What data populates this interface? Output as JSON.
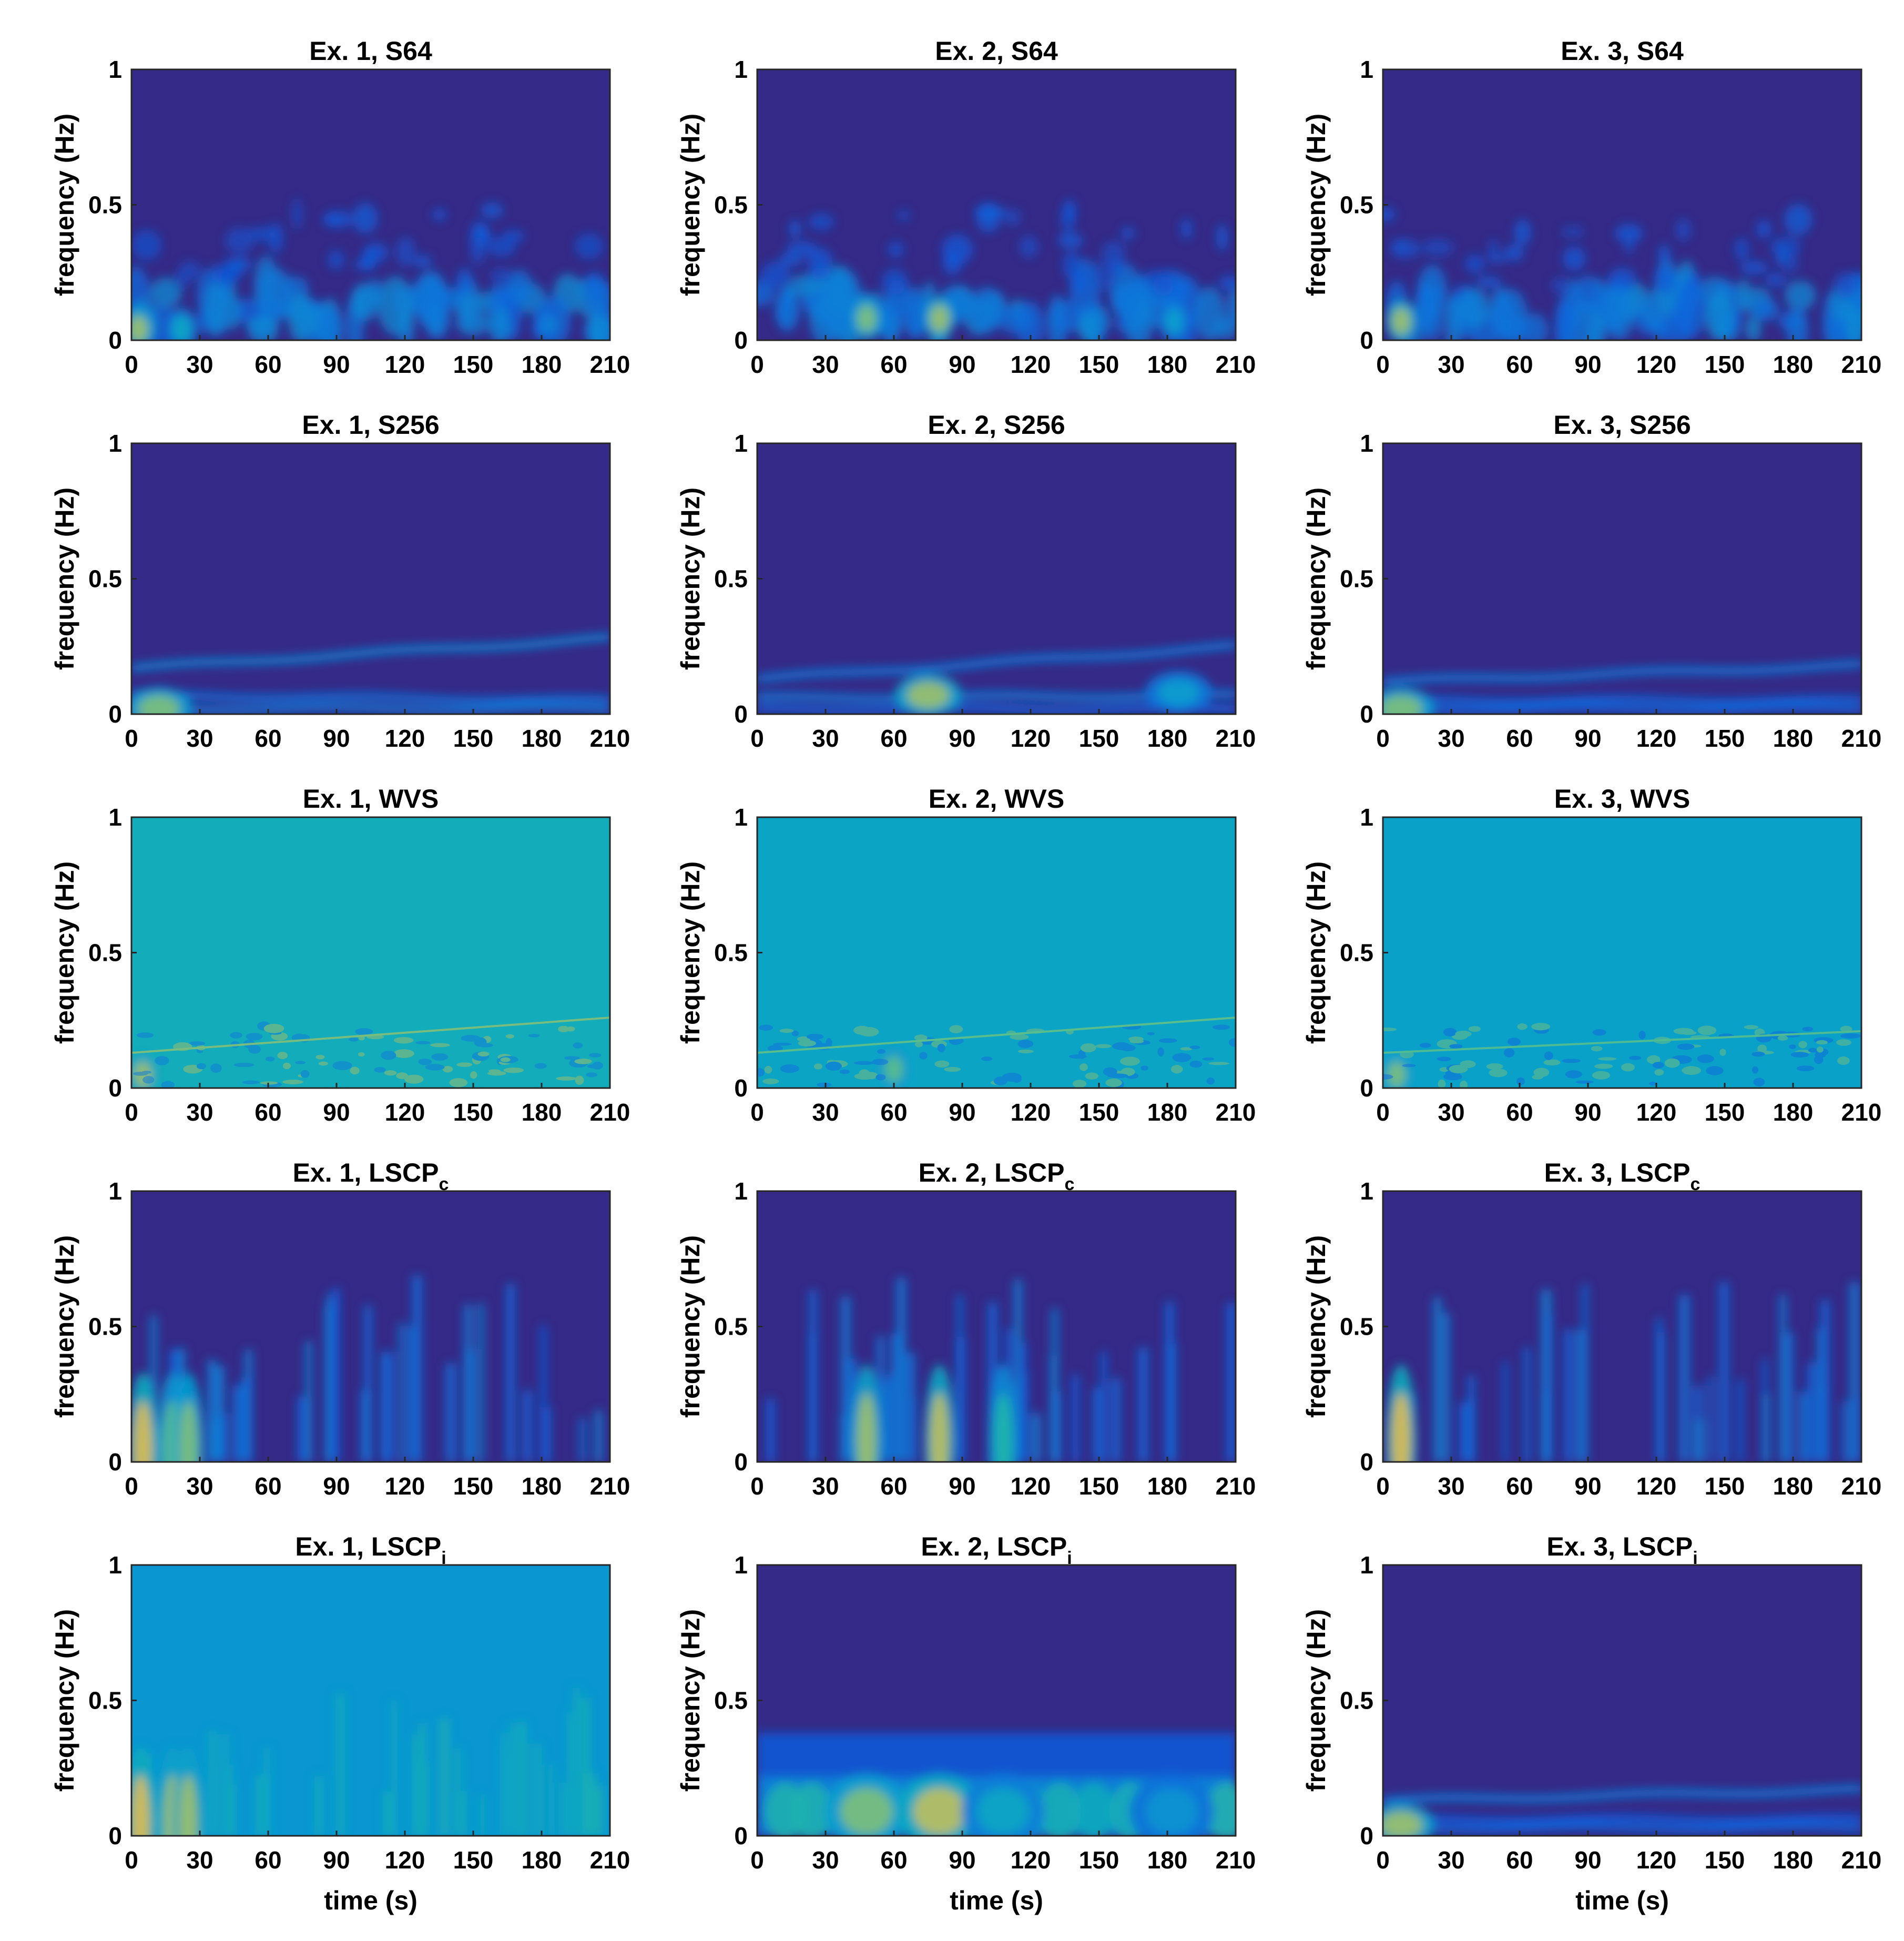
{
  "colors": {
    "colormap": "parula",
    "background_low": "#352a87",
    "axis": "#262626"
  },
  "chart_data": [
    {
      "type": "heatmap",
      "title": "Ex. 1, S64",
      "title_base": "Ex. 1, S64",
      "title_sub": "",
      "xlabel": "",
      "ylabel": "frequency (Hz)",
      "xlim": [
        0,
        210
      ],
      "ylim": [
        0,
        1
      ],
      "xticks": [
        "0",
        "30",
        "60",
        "90",
        "120",
        "150",
        "180",
        "210"
      ],
      "yticks": [
        "0",
        "0.5",
        "1"
      ],
      "style": "spectro",
      "hot_spots": [
        {
          "t": 3,
          "f": 0.04,
          "v": 0.8
        },
        {
          "t": 22,
          "f": 0.04,
          "v": 0.5
        }
      ]
    },
    {
      "type": "heatmap",
      "title": "Ex. 2, S64",
      "title_base": "Ex. 2, S64",
      "title_sub": "",
      "xlabel": "",
      "ylabel": "frequency (Hz)",
      "xlim": [
        0,
        210
      ],
      "ylim": [
        0,
        1
      ],
      "xticks": [
        "0",
        "30",
        "60",
        "90",
        "120",
        "150",
        "180",
        "210"
      ],
      "yticks": [
        "0",
        "0.5",
        "1"
      ],
      "style": "spectro",
      "hot_spots": [
        {
          "t": 48,
          "f": 0.08,
          "v": 0.75
        },
        {
          "t": 80,
          "f": 0.08,
          "v": 0.8
        },
        {
          "t": 183,
          "f": 0.07,
          "v": 0.45
        }
      ]
    },
    {
      "type": "heatmap",
      "title": "Ex. 3, S64",
      "title_base": "Ex. 3, S64",
      "title_sub": "",
      "xlabel": "",
      "ylabel": "frequency (Hz)",
      "xlim": [
        0,
        210
      ],
      "ylim": [
        0,
        1
      ],
      "xticks": [
        "0",
        "30",
        "60",
        "90",
        "120",
        "150",
        "180",
        "210"
      ],
      "yticks": [
        "0",
        "0.5",
        "1"
      ],
      "style": "spectro",
      "hot_spots": [
        {
          "t": 8,
          "f": 0.07,
          "v": 0.8
        }
      ]
    },
    {
      "type": "heatmap",
      "title": "Ex. 1, S256",
      "title_base": "Ex. 1, S256",
      "title_sub": "",
      "xlabel": "",
      "ylabel": "frequency (Hz)",
      "xlim": [
        0,
        210
      ],
      "ylim": [
        0,
        1
      ],
      "xticks": [
        "0",
        "30",
        "60",
        "90",
        "120",
        "150",
        "180",
        "210"
      ],
      "yticks": [
        "0",
        "0.5",
        "1"
      ],
      "style": "lines",
      "ridges": [
        {
          "f0": 0.17,
          "f1": 0.28,
          "v": 0.35
        },
        {
          "f0": 0.07,
          "f1": 0.05,
          "v": 0.25
        },
        {
          "f0": 0.02,
          "f1": 0.02,
          "v": 0.3
        }
      ],
      "hot_spots": [
        {
          "t": 12,
          "f": 0.02,
          "v": 0.75
        }
      ]
    },
    {
      "type": "heatmap",
      "title": "Ex. 2, S256",
      "title_base": "Ex. 2, S256",
      "title_sub": "",
      "xlabel": "",
      "ylabel": "frequency (Hz)",
      "xlim": [
        0,
        210
      ],
      "ylim": [
        0,
        1
      ],
      "xticks": [
        "0",
        "30",
        "60",
        "90",
        "120",
        "150",
        "180",
        "210"
      ],
      "yticks": [
        "0",
        "0.5",
        "1"
      ],
      "style": "lines",
      "ridges": [
        {
          "f0": 0.13,
          "f1": 0.25,
          "v": 0.3
        },
        {
          "f0": 0.06,
          "f1": 0.07,
          "v": 0.3
        },
        {
          "f0": 0.02,
          "f1": 0.02,
          "v": 0.2
        }
      ],
      "hot_spots": [
        {
          "t": 75,
          "f": 0.07,
          "v": 0.8
        },
        {
          "t": 185,
          "f": 0.08,
          "v": 0.45
        }
      ]
    },
    {
      "type": "heatmap",
      "title": "Ex. 3, S256",
      "title_base": "Ex. 3, S256",
      "title_sub": "",
      "xlabel": "",
      "ylabel": "frequency (Hz)",
      "xlim": [
        0,
        210
      ],
      "ylim": [
        0,
        1
      ],
      "xticks": [
        "0",
        "30",
        "60",
        "90",
        "120",
        "150",
        "180",
        "210"
      ],
      "yticks": [
        "0",
        "0.5",
        "1"
      ],
      "style": "lines",
      "ridges": [
        {
          "f0": 0.12,
          "f1": 0.18,
          "v": 0.3
        },
        {
          "f0": 0.05,
          "f1": 0.05,
          "v": 0.2
        },
        {
          "f0": 0.02,
          "f1": 0.02,
          "v": 0.2
        }
      ],
      "hot_spots": [
        {
          "t": 8,
          "f": 0.02,
          "v": 0.75
        }
      ]
    },
    {
      "type": "heatmap",
      "title": "Ex. 1, WVS",
      "title_base": "Ex. 1, WVS",
      "title_sub": "",
      "xlabel": "",
      "ylabel": "frequency (Hz)",
      "xlim": [
        0,
        210
      ],
      "ylim": [
        0,
        1
      ],
      "xticks": [
        "0",
        "30",
        "60",
        "90",
        "120",
        "150",
        "180",
        "210"
      ],
      "yticks": [
        "0",
        "0.5",
        "1"
      ],
      "style": "wvs",
      "base_level": 0.55,
      "hot_spots": [
        {
          "t": 5,
          "f": 0.05,
          "v": 0.8
        }
      ]
    },
    {
      "type": "heatmap",
      "title": "Ex. 2, WVS",
      "title_base": "Ex. 2, WVS",
      "title_sub": "",
      "xlabel": "",
      "ylabel": "frequency (Hz)",
      "xlim": [
        0,
        210
      ],
      "ylim": [
        0,
        1
      ],
      "xticks": [
        "0",
        "30",
        "60",
        "90",
        "120",
        "150",
        "180",
        "210"
      ],
      "yticks": [
        "0",
        "0.5",
        "1"
      ],
      "style": "wvs",
      "base_level": 0.5,
      "hot_spots": [
        {
          "t": 60,
          "f": 0.07,
          "v": 0.7
        }
      ]
    },
    {
      "type": "heatmap",
      "title": "Ex. 3, WVS",
      "title_base": "Ex. 3, WVS",
      "title_sub": "",
      "xlabel": "",
      "ylabel": "frequency (Hz)",
      "xlim": [
        0,
        210
      ],
      "ylim": [
        0,
        1
      ],
      "xticks": [
        "0",
        "30",
        "60",
        "90",
        "120",
        "150",
        "180",
        "210"
      ],
      "yticks": [
        "0",
        "0.5",
        "1"
      ],
      "style": "wvs",
      "base_level": 0.48,
      "hot_spots": [
        {
          "t": 6,
          "f": 0.05,
          "v": 0.75
        }
      ]
    },
    {
      "type": "heatmap",
      "title": "Ex. 1, LSCPc",
      "title_base": "Ex. 1, LSCP",
      "title_sub": "c",
      "xlabel": "",
      "ylabel": "frequency (Hz)",
      "xlim": [
        0,
        210
      ],
      "ylim": [
        0,
        1
      ],
      "xticks": [
        "0",
        "30",
        "60",
        "90",
        "120",
        "150",
        "180",
        "210"
      ],
      "yticks": [
        "0",
        "0.5",
        "1"
      ],
      "style": "stripes",
      "hot_spots": [
        {
          "t": 5,
          "f": 0.05,
          "v": 0.9
        },
        {
          "t": 18,
          "f": 0.05,
          "v": 0.7
        },
        {
          "t": 25,
          "f": 0.05,
          "v": 0.75
        }
      ]
    },
    {
      "type": "heatmap",
      "title": "Ex. 2, LSCPc",
      "title_base": "Ex. 2, LSCP",
      "title_sub": "c",
      "xlabel": "",
      "ylabel": "frequency (Hz)",
      "xlim": [
        0,
        210
      ],
      "ylim": [
        0,
        1
      ],
      "xticks": [
        "0",
        "30",
        "60",
        "90",
        "120",
        "150",
        "180",
        "210"
      ],
      "yticks": [
        "0",
        "0.5",
        "1"
      ],
      "style": "stripes",
      "hot_spots": [
        {
          "t": 48,
          "f": 0.08,
          "v": 0.8
        },
        {
          "t": 80,
          "f": 0.08,
          "v": 0.85
        },
        {
          "t": 108,
          "f": 0.08,
          "v": 0.6
        }
      ]
    },
    {
      "type": "heatmap",
      "title": "Ex. 3, LSCPc",
      "title_base": "Ex. 3, LSCP",
      "title_sub": "c",
      "xlabel": "",
      "ylabel": "frequency (Hz)",
      "xlim": [
        0,
        210
      ],
      "ylim": [
        0,
        1
      ],
      "xticks": [
        "0",
        "30",
        "60",
        "90",
        "120",
        "150",
        "180",
        "210"
      ],
      "yticks": [
        "0",
        "0.5",
        "1"
      ],
      "style": "stripes",
      "hot_spots": [
        {
          "t": 8,
          "f": 0.08,
          "v": 0.9
        }
      ]
    },
    {
      "type": "heatmap",
      "title": "Ex. 1, LSCPi",
      "title_base": "Ex. 1, LSCP",
      "title_sub": "i",
      "xlabel": "time (s)",
      "ylabel": "frequency (Hz)",
      "xlim": [
        0,
        210
      ],
      "ylim": [
        0,
        1
      ],
      "xticks": [
        "0",
        "30",
        "60",
        "90",
        "120",
        "150",
        "180",
        "210"
      ],
      "yticks": [
        "0",
        "0.5",
        "1"
      ],
      "style": "flat_stripes",
      "base_level": 0.42,
      "hot_spots": [
        {
          "t": 4,
          "f": 0.05,
          "v": 0.9
        },
        {
          "t": 18,
          "f": 0.05,
          "v": 0.8
        },
        {
          "t": 25,
          "f": 0.05,
          "v": 0.8
        }
      ]
    },
    {
      "type": "heatmap",
      "title": "Ex. 2, LSCPi",
      "title_base": "Ex. 2, LSCP",
      "title_sub": "i",
      "xlabel": "time (s)",
      "ylabel": "frequency (Hz)",
      "xlim": [
        0,
        210
      ],
      "ylim": [
        0,
        1
      ],
      "xticks": [
        "0",
        "30",
        "60",
        "90",
        "120",
        "150",
        "180",
        "210"
      ],
      "yticks": [
        "0",
        "0.5",
        "1"
      ],
      "style": "blobs",
      "hot_spots": [
        {
          "t": 48,
          "f": 0.09,
          "v": 0.75
        },
        {
          "t": 80,
          "f": 0.09,
          "v": 0.85
        },
        {
          "t": 108,
          "f": 0.09,
          "v": 0.5
        },
        {
          "t": 182,
          "f": 0.09,
          "v": 0.4
        }
      ]
    },
    {
      "type": "heatmap",
      "title": "Ex. 3, LSCPi",
      "title_base": "Ex. 3, LSCP",
      "title_sub": "i",
      "xlabel": "time (s)",
      "ylabel": "frequency (Hz)",
      "xlim": [
        0,
        210
      ],
      "ylim": [
        0,
        1
      ],
      "xticks": [
        "0",
        "30",
        "60",
        "90",
        "120",
        "150",
        "180",
        "210"
      ],
      "yticks": [
        "0",
        "0.5",
        "1"
      ],
      "style": "lines",
      "ridges": [
        {
          "f0": 0.13,
          "f1": 0.17,
          "v": 0.3
        },
        {
          "f0": 0.06,
          "f1": 0.06,
          "v": 0.15
        },
        {
          "f0": 0.03,
          "f1": 0.03,
          "v": 0.2
        }
      ],
      "hot_spots": [
        {
          "t": 8,
          "f": 0.04,
          "v": 0.8
        }
      ]
    }
  ]
}
